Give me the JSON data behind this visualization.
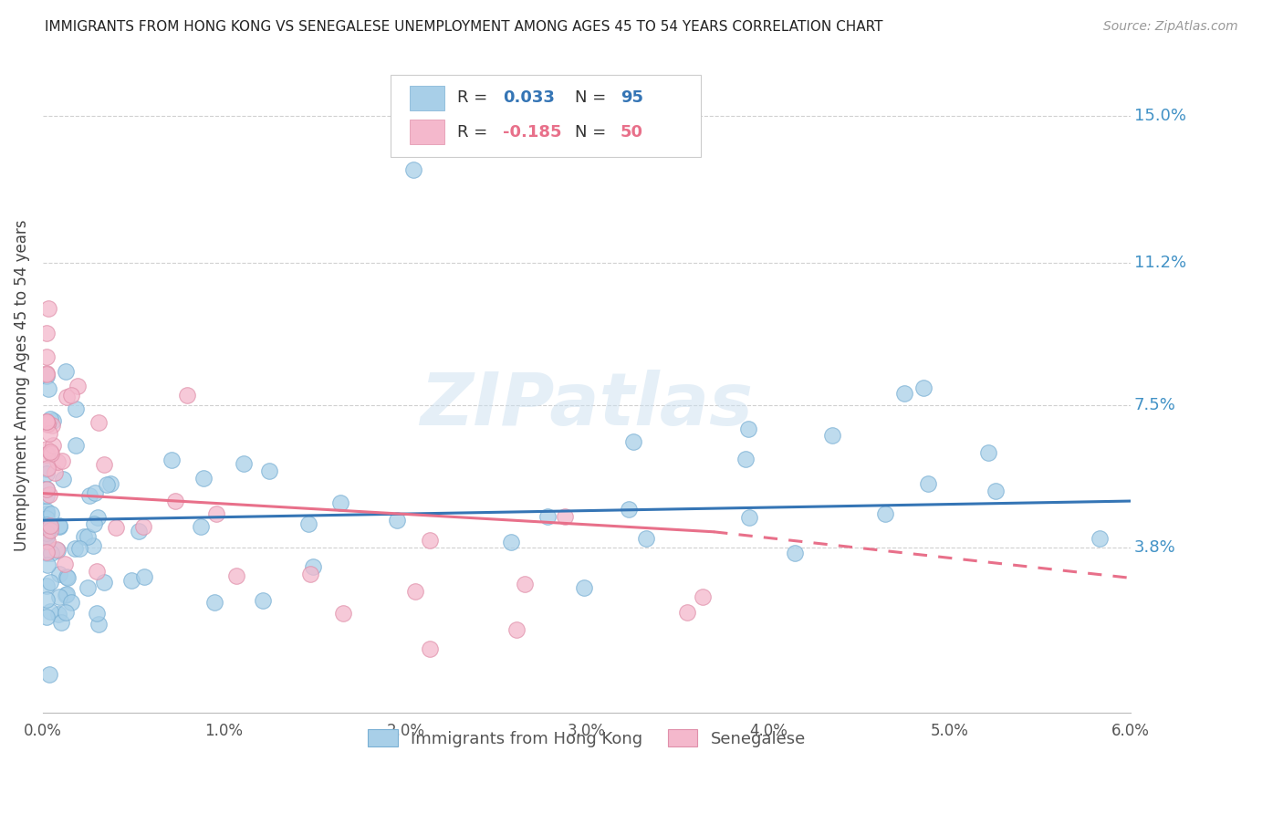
{
  "title": "IMMIGRANTS FROM HONG KONG VS SENEGALESE UNEMPLOYMENT AMONG AGES 45 TO 54 YEARS CORRELATION CHART",
  "source": "Source: ZipAtlas.com",
  "ylabel": "Unemployment Among Ages 45 to 54 years",
  "right_yticks": [
    "15.0%",
    "11.2%",
    "7.5%",
    "3.8%"
  ],
  "right_ytick_vals": [
    0.15,
    0.112,
    0.075,
    0.038
  ],
  "xlim": [
    0.0,
    0.06
  ],
  "ylim": [
    -0.005,
    0.165
  ],
  "color_blue": "#a8cfe8",
  "color_pink": "#f4b8cc",
  "line_blue": "#3575b5",
  "line_pink": "#e8708a",
  "R_blue": 0.033,
  "N_blue": 95,
  "R_pink": -0.185,
  "N_pink": 50,
  "watermark": "ZIPatlas",
  "legend_label_blue": "Immigrants from Hong Kong",
  "legend_label_pink": "Senegalese"
}
